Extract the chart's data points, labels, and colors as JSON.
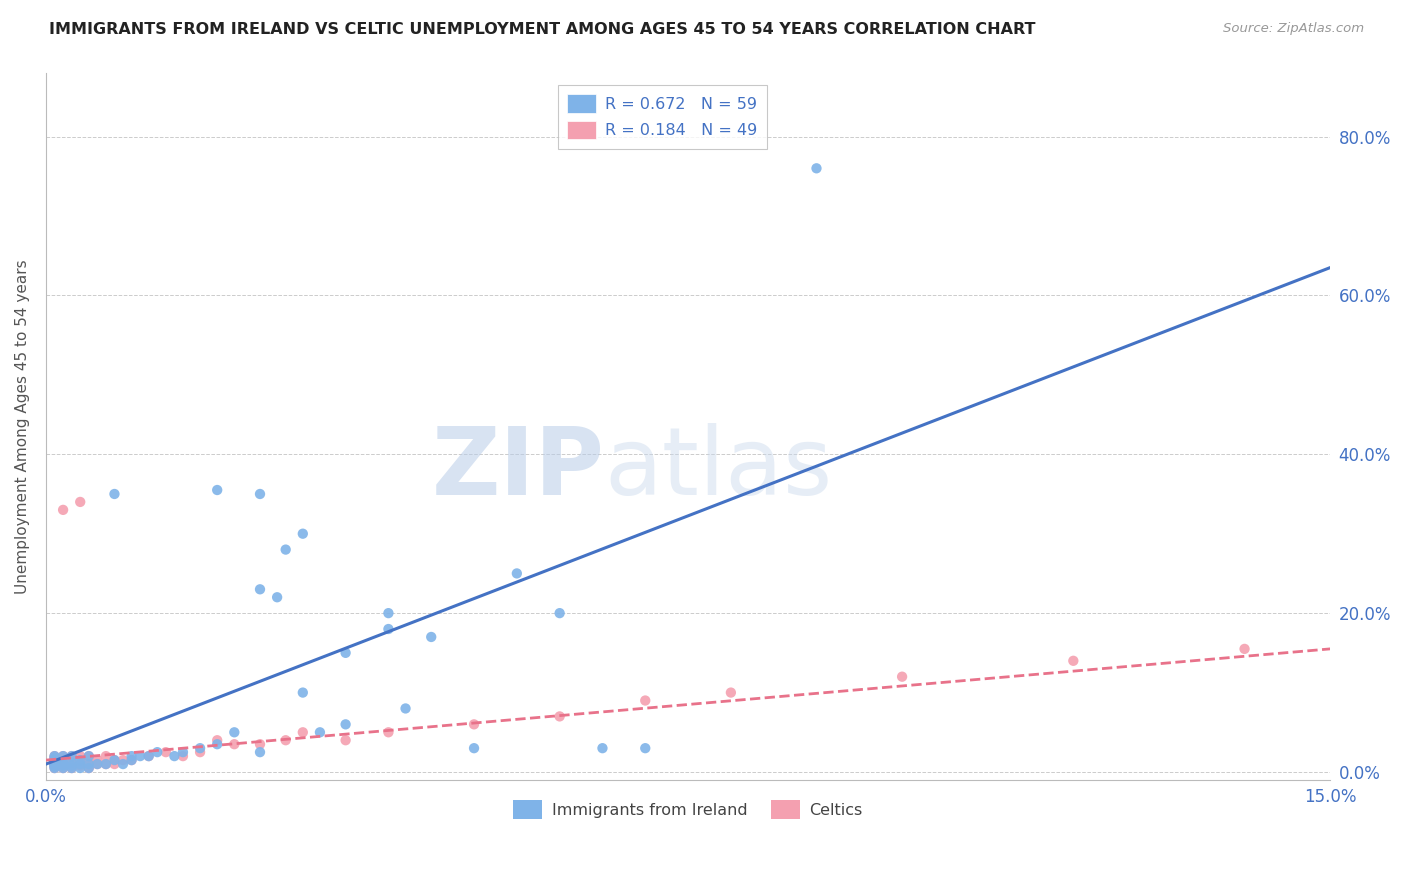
{
  "title": "IMMIGRANTS FROM IRELAND VS CELTIC UNEMPLOYMENT AMONG AGES 45 TO 54 YEARS CORRELATION CHART",
  "source": "Source: ZipAtlas.com",
  "ylabel": "Unemployment Among Ages 45 to 54 years",
  "ytick_labels": [
    "0.0%",
    "20.0%",
    "40.0%",
    "60.0%",
    "80.0%"
  ],
  "ytick_values": [
    0.0,
    0.2,
    0.4,
    0.6,
    0.8
  ],
  "xmin": 0.0,
  "xmax": 0.15,
  "ymin": -0.01,
  "ymax": 0.88,
  "legend_label1": "R = 0.672   N = 59",
  "legend_label2": "R = 0.184   N = 49",
  "legend_label_bottom1": "Immigrants from Ireland",
  "legend_label_bottom2": "Celtics",
  "color_ireland": "#7FB3E8",
  "color_celtics": "#F4A0B0",
  "color_ireland_line": "#4472C4",
  "color_celtics_line": "#E8728A",
  "ireland_line_x0": 0.0,
  "ireland_line_y0": 0.01,
  "ireland_line_x1": 0.15,
  "ireland_line_y1": 0.635,
  "celtics_line_x0": 0.0,
  "celtics_line_y0": 0.015,
  "celtics_line_x1": 0.15,
  "celtics_line_y1": 0.155,
  "ireland_x": [
    0.001,
    0.001,
    0.001,
    0.001,
    0.001,
    0.001,
    0.001,
    0.001,
    0.002,
    0.002,
    0.002,
    0.002,
    0.002,
    0.003,
    0.003,
    0.003,
    0.003,
    0.004,
    0.004,
    0.004,
    0.005,
    0.005,
    0.005,
    0.006,
    0.007,
    0.008,
    0.009,
    0.01,
    0.01,
    0.011,
    0.012,
    0.013,
    0.015,
    0.016,
    0.018,
    0.02,
    0.022,
    0.025,
    0.025,
    0.027,
    0.028,
    0.03,
    0.032,
    0.035,
    0.04,
    0.042,
    0.045,
    0.05,
    0.055,
    0.06,
    0.065,
    0.07,
    0.008,
    0.02,
    0.025,
    0.03,
    0.035,
    0.04,
    0.09
  ],
  "ireland_y": [
    0.005,
    0.007,
    0.008,
    0.01,
    0.012,
    0.015,
    0.018,
    0.02,
    0.005,
    0.008,
    0.01,
    0.012,
    0.02,
    0.005,
    0.008,
    0.012,
    0.02,
    0.005,
    0.01,
    0.015,
    0.005,
    0.01,
    0.02,
    0.01,
    0.01,
    0.015,
    0.01,
    0.015,
    0.02,
    0.02,
    0.02,
    0.025,
    0.02,
    0.025,
    0.03,
    0.035,
    0.05,
    0.025,
    0.23,
    0.22,
    0.28,
    0.3,
    0.05,
    0.06,
    0.2,
    0.08,
    0.17,
    0.03,
    0.25,
    0.2,
    0.03,
    0.03,
    0.35,
    0.355,
    0.35,
    0.1,
    0.15,
    0.18,
    0.76
  ],
  "celtics_x": [
    0.001,
    0.001,
    0.001,
    0.001,
    0.001,
    0.001,
    0.001,
    0.002,
    0.002,
    0.002,
    0.002,
    0.003,
    0.003,
    0.003,
    0.003,
    0.004,
    0.004,
    0.004,
    0.005,
    0.005,
    0.005,
    0.006,
    0.006,
    0.007,
    0.007,
    0.008,
    0.008,
    0.009,
    0.01,
    0.012,
    0.014,
    0.016,
    0.018,
    0.02,
    0.022,
    0.025,
    0.028,
    0.03,
    0.035,
    0.04,
    0.05,
    0.06,
    0.07,
    0.08,
    0.1,
    0.12,
    0.14,
    0.002,
    0.004
  ],
  "celtics_y": [
    0.005,
    0.008,
    0.01,
    0.012,
    0.015,
    0.018,
    0.02,
    0.005,
    0.008,
    0.012,
    0.02,
    0.005,
    0.01,
    0.015,
    0.02,
    0.008,
    0.012,
    0.02,
    0.005,
    0.015,
    0.02,
    0.01,
    0.015,
    0.01,
    0.02,
    0.01,
    0.015,
    0.015,
    0.015,
    0.02,
    0.025,
    0.02,
    0.025,
    0.04,
    0.035,
    0.035,
    0.04,
    0.05,
    0.04,
    0.05,
    0.06,
    0.07,
    0.09,
    0.1,
    0.12,
    0.14,
    0.155,
    0.33,
    0.34
  ],
  "watermark_zip": "ZIP",
  "watermark_atlas": "atlas",
  "background_color": "#FFFFFF",
  "grid_color": "#CCCCCC",
  "text_color_title": "#222222",
  "text_color_axis": "#4472C4",
  "text_color_source": "#999999"
}
